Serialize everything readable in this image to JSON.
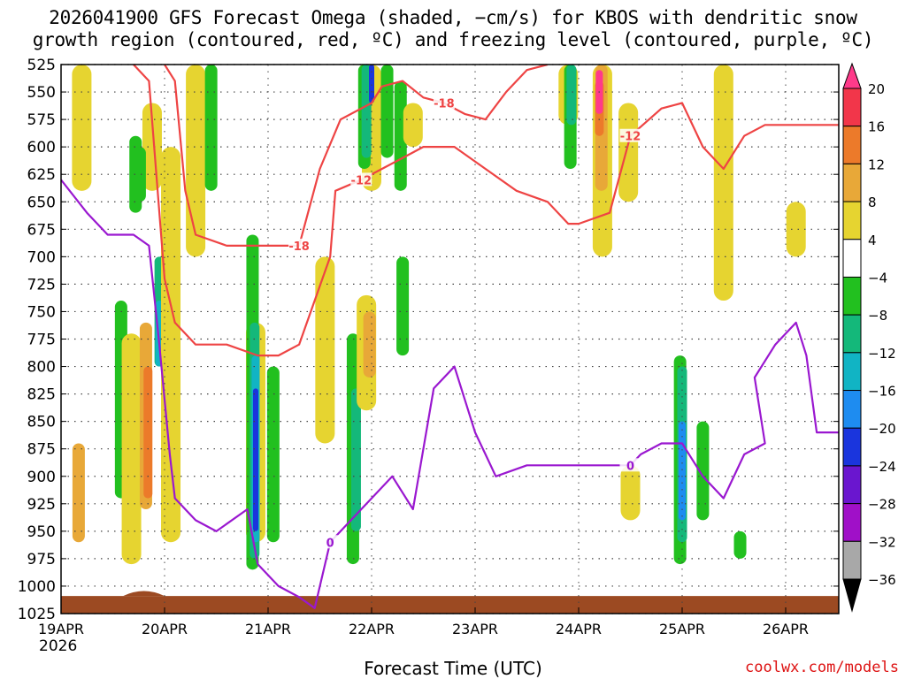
{
  "title_line1": "2026041900 GFS Forecast Omega (shaded, −cm/s) for KBOS with dendritic snow",
  "title_line2": "growth region (contoured, red, ºC) and freezing level (contoured, purple, ºC)",
  "xlabel": "Forecast Time (UTC)",
  "year_label": "2026",
  "credit": "coolwx.com/models",
  "chart_data": {
    "type": "heatmap",
    "y_axis": {
      "levels_hpa": [
        525,
        550,
        575,
        600,
        625,
        650,
        675,
        700,
        725,
        750,
        775,
        800,
        825,
        850,
        875,
        900,
        925,
        950,
        975,
        1000,
        1025
      ],
      "range": [
        525,
        1025
      ],
      "inverted": true
    },
    "x_axis": {
      "tick_labels": [
        "19APR",
        "20APR",
        "21APR",
        "22APR",
        "23APR",
        "24APR",
        "25APR",
        "26APR"
      ],
      "range_days": [
        0,
        7.6
      ]
    },
    "grid": true,
    "colorbar": {
      "labels": [
        "20",
        "16",
        "12",
        "8",
        "4",
        "−4",
        "−8",
        "−12",
        "−16",
        "−20",
        "−24",
        "−28",
        "−32",
        "−36"
      ],
      "colors": [
        "#ff3a8a",
        "#f2364a",
        "#ec7a2a",
        "#e8a838",
        "#e6d430",
        "#ffffff",
        "#22c01f",
        "#14b87a",
        "#11b4c4",
        "#1e8cf0",
        "#1a35dd",
        "#6a16cf",
        "#a010c8",
        "#a8a8a8",
        "#000000"
      ]
    },
    "omega_blobs": [
      {
        "x": 0.2,
        "p0": 525,
        "p1": 640,
        "level": 4
      },
      {
        "x": 0.58,
        "p0": 740,
        "p1": 920,
        "level": -8
      },
      {
        "x": 0.68,
        "p0": 770,
        "p1": 980,
        "level": 4
      },
      {
        "x": 0.82,
        "p0": 760,
        "p1": 930,
        "level": 8
      },
      {
        "x": 0.84,
        "p0": 800,
        "p1": 920,
        "level": 12
      },
      {
        "x": 0.95,
        "p0": 700,
        "p1": 800,
        "level": -12
      },
      {
        "x": 0.95,
        "p0": 740,
        "p1": 800,
        "level": -16
      },
      {
        "x": 0.72,
        "p0": 590,
        "p1": 660,
        "level": -8
      },
      {
        "x": 0.88,
        "p0": 560,
        "p1": 640,
        "level": 4
      },
      {
        "x": 1.3,
        "p0": 525,
        "p1": 700,
        "level": 4
      },
      {
        "x": 1.45,
        "p0": 525,
        "p1": 640,
        "level": -8
      },
      {
        "x": 1.88,
        "p0": 760,
        "p1": 960,
        "level": 4
      },
      {
        "x": 1.85,
        "p0": 680,
        "p1": 985,
        "level": -8
      },
      {
        "x": 1.87,
        "p0": 760,
        "p1": 975,
        "level": -12
      },
      {
        "x": 1.88,
        "p0": 790,
        "p1": 960,
        "level": -16
      },
      {
        "x": 1.88,
        "p0": 820,
        "p1": 950,
        "level": -24
      },
      {
        "x": 2.05,
        "p0": 800,
        "p1": 960,
        "level": -8
      },
      {
        "x": 2.55,
        "p0": 700,
        "p1": 870,
        "level": 4
      },
      {
        "x": 2.82,
        "p0": 770,
        "p1": 980,
        "level": -8
      },
      {
        "x": 2.85,
        "p0": 820,
        "p1": 950,
        "level": -12
      },
      {
        "x": 2.95,
        "p0": 735,
        "p1": 840,
        "level": 4
      },
      {
        "x": 2.98,
        "p0": 750,
        "p1": 810,
        "level": 8
      },
      {
        "x": 3.0,
        "p0": 525,
        "p1": 640,
        "level": 4
      },
      {
        "x": 2.93,
        "p0": 525,
        "p1": 620,
        "level": -8
      },
      {
        "x": 2.95,
        "p0": 525,
        "p1": 610,
        "level": -12
      },
      {
        "x": 3.0,
        "p0": 525,
        "p1": 560,
        "level": -24
      },
      {
        "x": 3.15,
        "p0": 525,
        "p1": 610,
        "level": -8
      },
      {
        "x": 3.28,
        "p0": 540,
        "p1": 640,
        "level": -8
      },
      {
        "x": 3.3,
        "p0": 700,
        "p1": 790,
        "level": -8
      },
      {
        "x": 3.4,
        "p0": 560,
        "p1": 600,
        "level": 4
      },
      {
        "x": 4.9,
        "p0": 525,
        "p1": 580,
        "level": 4
      },
      {
        "x": 4.92,
        "p0": 525,
        "p1": 620,
        "level": -8
      },
      {
        "x": 4.93,
        "p0": 525,
        "p1": 580,
        "level": -12
      },
      {
        "x": 5.23,
        "p0": 525,
        "p1": 700,
        "level": 4
      },
      {
        "x": 5.22,
        "p0": 525,
        "p1": 640,
        "level": 8
      },
      {
        "x": 5.2,
        "p0": 540,
        "p1": 590,
        "level": 12
      },
      {
        "x": 5.2,
        "p0": 530,
        "p1": 570,
        "level": 20
      },
      {
        "x": 5.48,
        "p0": 560,
        "p1": 650,
        "level": 4
      },
      {
        "x": 5.98,
        "p0": 790,
        "p1": 980,
        "level": -8
      },
      {
        "x": 6.0,
        "p0": 800,
        "p1": 960,
        "level": -12
      },
      {
        "x": 6.0,
        "p0": 850,
        "p1": 940,
        "level": -20
      },
      {
        "x": 6.2,
        "p0": 850,
        "p1": 940,
        "level": -8
      },
      {
        "x": 6.4,
        "p0": 525,
        "p1": 740,
        "level": 4
      },
      {
        "x": 6.56,
        "p0": 950,
        "p1": 975,
        "level": -8
      },
      {
        "x": 7.1,
        "p0": 650,
        "p1": 700,
        "level": 4
      },
      {
        "x": 5.5,
        "p0": 890,
        "p1": 940,
        "level": 4
      },
      {
        "x": 1.06,
        "p0": 600,
        "p1": 960,
        "level": 4
      },
      {
        "x": 0.17,
        "p0": 870,
        "p1": 960,
        "level": 8
      },
      {
        "x": 0.76,
        "p0": 600,
        "p1": 650,
        "level": -8
      }
    ],
    "dgz_contours": [
      {
        "label": "-12",
        "points": [
          [
            0.7,
            525
          ],
          [
            0.85,
            540
          ],
          [
            1.0,
            720
          ],
          [
            1.1,
            760
          ],
          [
            1.3,
            780
          ],
          [
            1.6,
            780
          ],
          [
            1.9,
            790
          ],
          [
            2.1,
            790
          ],
          [
            2.3,
            780
          ],
          [
            2.6,
            700
          ],
          [
            2.65,
            640
          ],
          [
            2.9,
            630
          ],
          [
            3.1,
            620
          ],
          [
            3.3,
            610
          ],
          [
            3.5,
            600
          ],
          [
            3.8,
            600
          ],
          [
            4.1,
            620
          ],
          [
            4.4,
            640
          ],
          [
            4.7,
            650
          ],
          [
            4.9,
            670
          ],
          [
            5.0,
            670
          ],
          [
            5.3,
            660
          ],
          [
            5.5,
            590
          ],
          [
            5.8,
            565
          ],
          [
            6.0,
            560
          ],
          [
            6.2,
            600
          ],
          [
            6.4,
            620
          ],
          [
            6.6,
            590
          ],
          [
            6.8,
            580
          ],
          [
            7.0,
            580
          ],
          [
            7.3,
            580
          ],
          [
            7.6,
            580
          ]
        ]
      },
      {
        "label": "-18",
        "points": [
          [
            1.0,
            525
          ],
          [
            1.1,
            540
          ],
          [
            1.2,
            640
          ],
          [
            1.3,
            680
          ],
          [
            1.6,
            690
          ],
          [
            2.0,
            690
          ],
          [
            2.3,
            690
          ],
          [
            2.5,
            620
          ],
          [
            2.7,
            575
          ],
          [
            3.0,
            560
          ],
          [
            3.1,
            545
          ],
          [
            3.3,
            540
          ],
          [
            3.5,
            555
          ],
          [
            3.7,
            560
          ],
          [
            3.9,
            570
          ],
          [
            4.1,
            575
          ],
          [
            4.3,
            550
          ],
          [
            4.5,
            530
          ],
          [
            4.7,
            525
          ]
        ]
      }
    ],
    "freezing_contour": {
      "label": "0",
      "points": [
        [
          0,
          630
        ],
        [
          0.25,
          660
        ],
        [
          0.45,
          680
        ],
        [
          0.7,
          680
        ],
        [
          0.85,
          690
        ],
        [
          0.95,
          780
        ],
        [
          1.05,
          880
        ],
        [
          1.1,
          920
        ],
        [
          1.3,
          940
        ],
        [
          1.5,
          950
        ],
        [
          1.8,
          930
        ],
        [
          1.9,
          980
        ],
        [
          2.1,
          1000
        ],
        [
          2.3,
          1010
        ],
        [
          2.45,
          1020
        ],
        [
          2.6,
          960
        ],
        [
          2.8,
          940
        ],
        [
          3.0,
          920
        ],
        [
          3.2,
          900
        ],
        [
          3.4,
          930
        ],
        [
          3.6,
          820
        ],
        [
          3.8,
          800
        ],
        [
          3.9,
          830
        ],
        [
          4.0,
          860
        ],
        [
          4.1,
          880
        ],
        [
          4.2,
          900
        ],
        [
          4.5,
          890
        ],
        [
          4.8,
          890
        ],
        [
          5.0,
          890
        ],
        [
          5.3,
          890
        ],
        [
          5.5,
          890
        ],
        [
          5.6,
          880
        ],
        [
          5.8,
          870
        ],
        [
          6.0,
          870
        ],
        [
          6.2,
          900
        ],
        [
          6.4,
          920
        ],
        [
          6.6,
          880
        ],
        [
          6.8,
          870
        ],
        [
          6.7,
          810
        ],
        [
          6.9,
          780
        ],
        [
          7.1,
          760
        ],
        [
          7.2,
          790
        ],
        [
          7.3,
          860
        ],
        [
          7.6,
          860
        ]
      ]
    }
  }
}
